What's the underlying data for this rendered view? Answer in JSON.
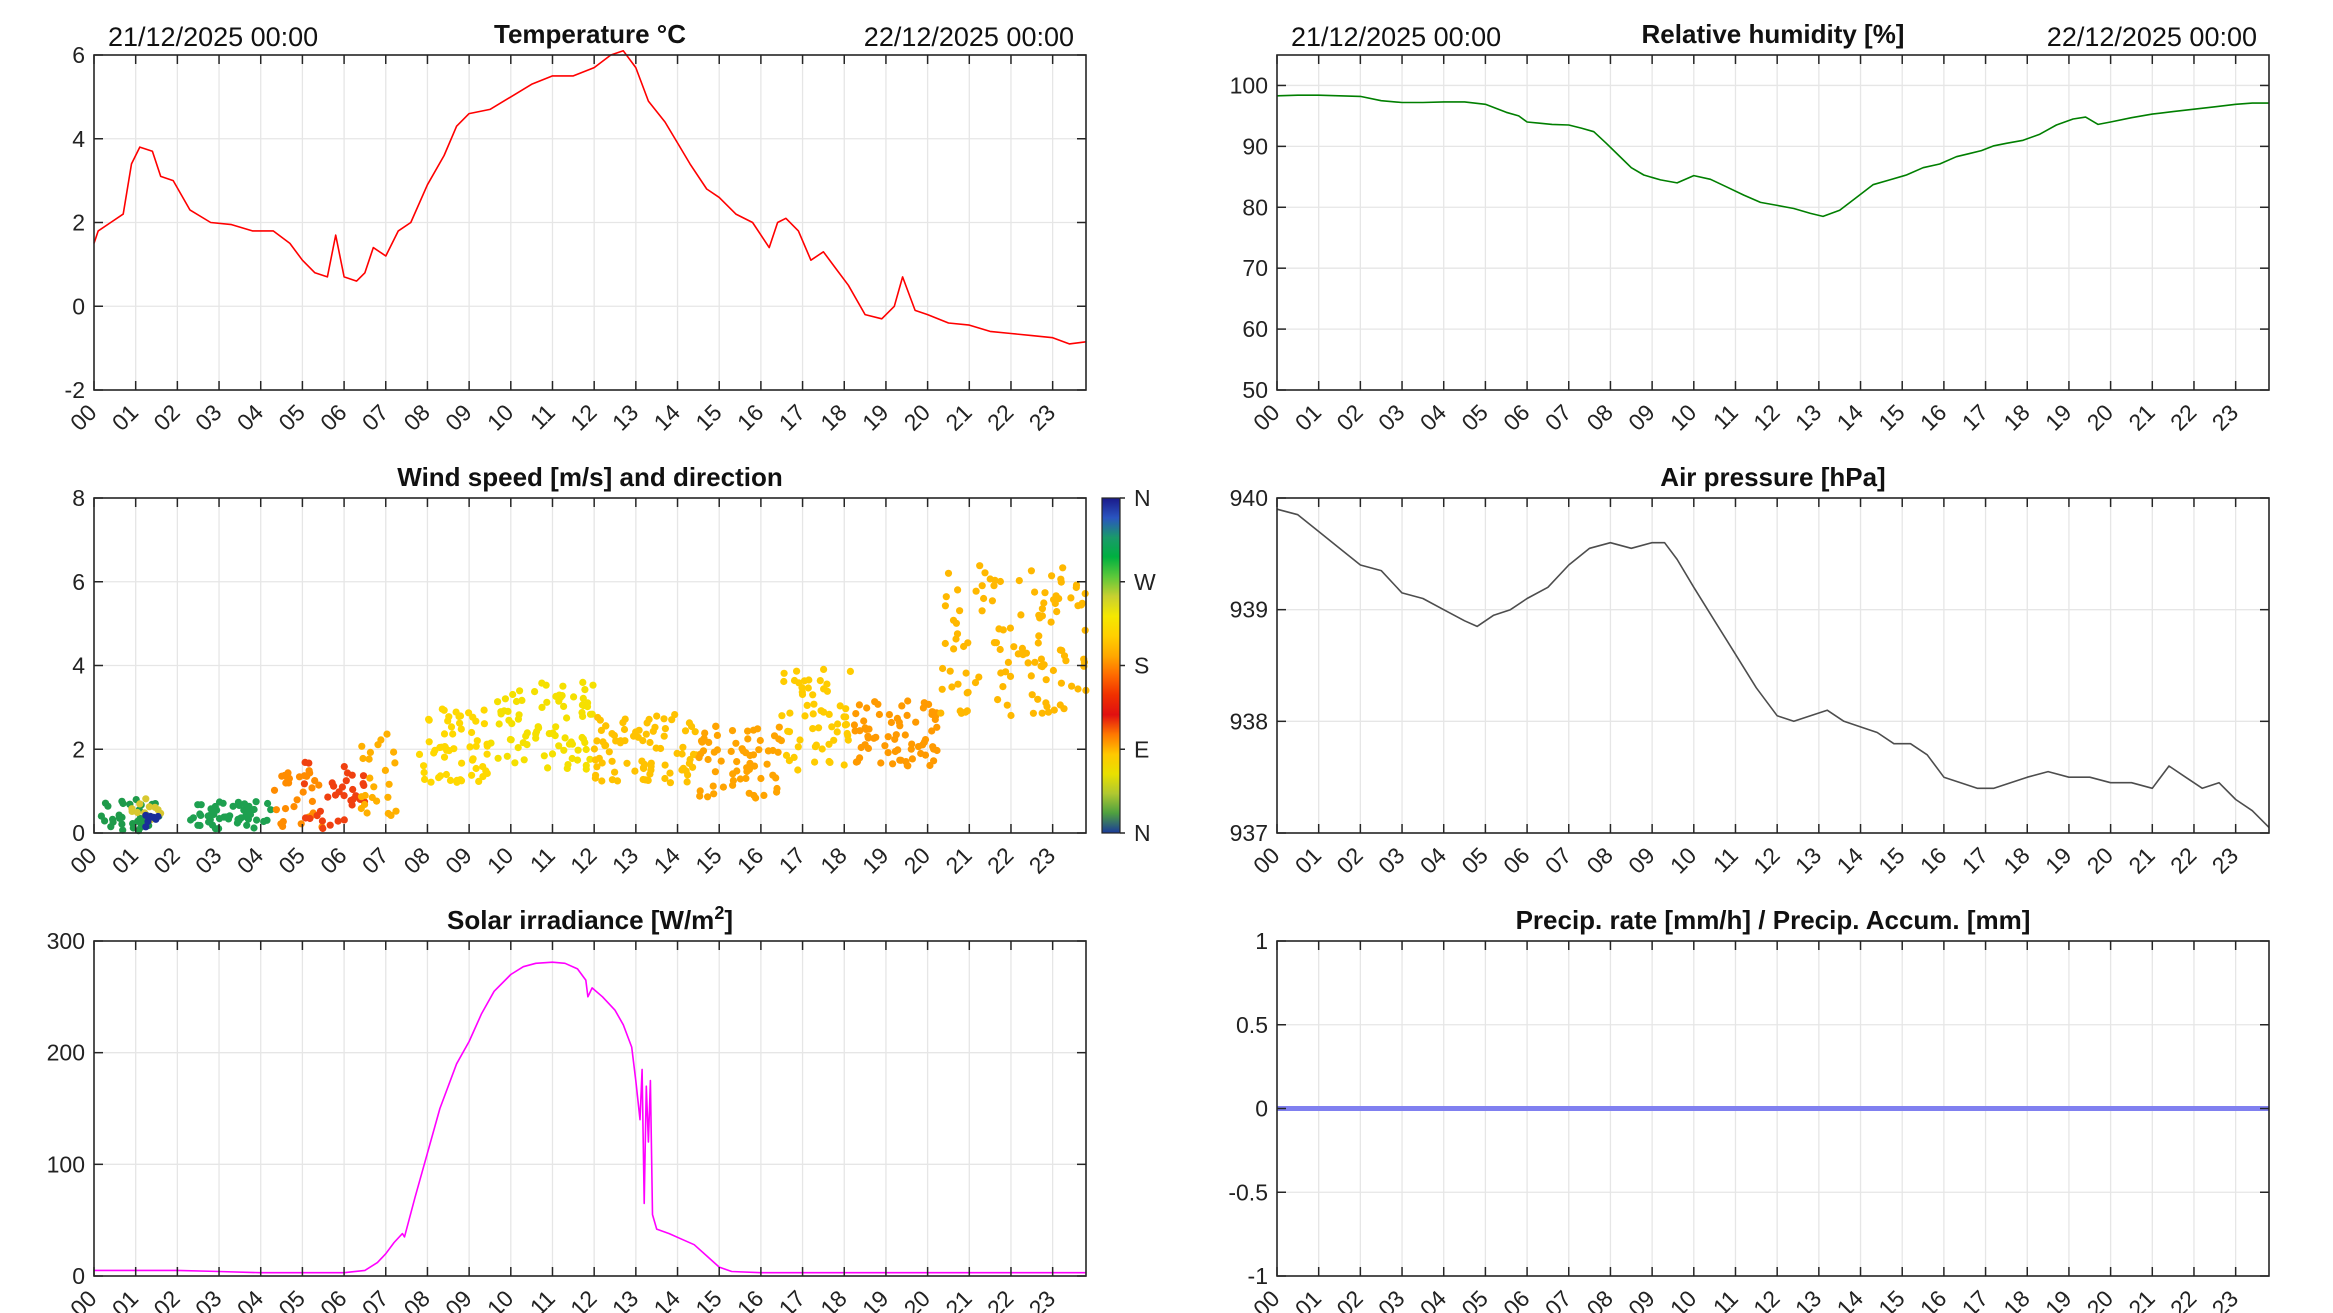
{
  "page": {
    "background": "#ffffff",
    "hour_labels": [
      "00",
      "01",
      "02",
      "03",
      "04",
      "05",
      "06",
      "07",
      "08",
      "09",
      "10",
      "11",
      "12",
      "13",
      "14",
      "15",
      "16",
      "17",
      "18",
      "19",
      "20",
      "21",
      "22",
      "23"
    ]
  },
  "chart_data": [
    {
      "id": "temperature",
      "type": "line",
      "title": "Temperature °C",
      "date_start": "21/12/2025 00:00",
      "date_end": "22/12/2025 00:00",
      "x_unit": "hour",
      "xlim": [
        0,
        23.8
      ],
      "ylim": [
        -2,
        6
      ],
      "yticks": [
        "6",
        "4",
        "2",
        "0",
        "-2"
      ],
      "color": "#ff0000",
      "x": [
        0,
        0.1,
        0.4,
        0.7,
        0.9,
        1.1,
        1.4,
        1.6,
        1.9,
        2.3,
        2.8,
        3.3,
        3.8,
        4.3,
        4.7,
        5.0,
        5.3,
        5.6,
        5.8,
        6.0,
        6.3,
        6.5,
        6.7,
        7.0,
        7.3,
        7.6,
        8.0,
        8.4,
        8.7,
        9.0,
        9.5,
        10.0,
        10.5,
        11.0,
        11.5,
        12.0,
        12.4,
        12.7,
        13.0,
        13.3,
        13.7,
        14.0,
        14.3,
        14.7,
        15.0,
        15.4,
        15.8,
        16.2,
        16.4,
        16.6,
        16.9,
        17.2,
        17.5,
        17.8,
        18.1,
        18.5,
        18.9,
        19.2,
        19.4,
        19.7,
        20.0,
        20.5,
        21.0,
        21.5,
        22.0,
        22.5,
        23.0,
        23.4,
        23.8
      ],
      "y": [
        1.5,
        1.8,
        2.0,
        2.2,
        3.4,
        3.8,
        3.7,
        3.1,
        3.0,
        2.3,
        2.0,
        1.95,
        1.8,
        1.8,
        1.5,
        1.1,
        0.8,
        0.7,
        1.7,
        0.7,
        0.6,
        0.8,
        1.4,
        1.2,
        1.8,
        2.0,
        2.9,
        3.6,
        4.3,
        4.6,
        4.7,
        5.0,
        5.3,
        5.5,
        5.5,
        5.7,
        6.0,
        6.1,
        5.7,
        4.9,
        4.4,
        3.9,
        3.4,
        2.8,
        2.6,
        2.2,
        2.0,
        1.4,
        2.0,
        2.1,
        1.8,
        1.1,
        1.3,
        0.9,
        0.5,
        -0.2,
        -0.3,
        0.0,
        0.7,
        -0.1,
        -0.2,
        -0.4,
        -0.45,
        -0.6,
        -0.65,
        -0.7,
        -0.75,
        -0.9,
        -0.85
      ]
    },
    {
      "id": "humidity",
      "type": "line",
      "title": "Relative humidity [%]",
      "date_start": "21/12/2025 00:00",
      "date_end": "22/12/2025 00:00",
      "x_unit": "hour",
      "xlim": [
        0,
        23.8
      ],
      "ylim": [
        50,
        105
      ],
      "yticks": [
        "100",
        "90",
        "80",
        "70",
        "60",
        "50"
      ],
      "color": "#007f00",
      "x": [
        0,
        0.5,
        1.0,
        1.5,
        2.0,
        2.5,
        3.0,
        3.5,
        4.0,
        4.5,
        5.0,
        5.5,
        5.8,
        6.0,
        6.3,
        6.6,
        7.0,
        7.3,
        7.6,
        7.9,
        8.2,
        8.5,
        8.8,
        9.2,
        9.6,
        10.0,
        10.4,
        10.8,
        11.2,
        11.6,
        12.0,
        12.4,
        12.8,
        13.1,
        13.5,
        13.9,
        14.3,
        14.7,
        15.1,
        15.5,
        15.9,
        16.3,
        16.6,
        16.9,
        17.2,
        17.5,
        17.9,
        18.3,
        18.7,
        19.1,
        19.4,
        19.7,
        20.0,
        20.5,
        21.0,
        21.5,
        22.0,
        22.5,
        23.0,
        23.4,
        23.8
      ],
      "y": [
        98.3,
        98.4,
        98.4,
        98.3,
        98.2,
        97.5,
        97.2,
        97.2,
        97.3,
        97.3,
        96.9,
        95.6,
        95.0,
        94.0,
        93.8,
        93.6,
        93.5,
        93.0,
        92.4,
        90.5,
        88.5,
        86.5,
        85.3,
        84.5,
        84.0,
        85.2,
        84.6,
        83.3,
        82.0,
        80.8,
        80.3,
        79.8,
        79.0,
        78.5,
        79.5,
        81.6,
        83.7,
        84.5,
        85.3,
        86.5,
        87.1,
        88.3,
        88.8,
        89.3,
        90.1,
        90.5,
        91.0,
        92.0,
        93.5,
        94.5,
        94.8,
        93.6,
        94.0,
        94.7,
        95.3,
        95.7,
        96.1,
        96.5,
        96.9,
        97.1,
        97.1
      ]
    },
    {
      "id": "wind",
      "type": "scatter",
      "title": "Wind speed [m/s] and direction",
      "x_unit": "hour",
      "xlim": [
        0,
        23.8
      ],
      "ylim": [
        0,
        8
      ],
      "yticks": [
        "8",
        "6",
        "4",
        "2",
        "0"
      ],
      "colorbar_labels": [
        "N",
        "W",
        "S",
        "E",
        "N"
      ],
      "colormap": [
        "#1a1a8a",
        "#2a55c0",
        "#1a9a6a",
        "#00b040",
        "#5cc83a",
        "#c8d030",
        "#f5e800",
        "#ffd000",
        "#ffa800",
        "#ff6a00",
        "#f03000",
        "#e01010",
        "#ff7800",
        "#ffc800",
        "#e8e000",
        "#b0c830",
        "#4ea040",
        "#1a3a9a"
      ],
      "segments": [
        {
          "x0": 0.0,
          "x1": 1.6,
          "y_min": 0.05,
          "y_max": 0.8,
          "n": 36,
          "color": "#1e9a4a"
        },
        {
          "x0": 0.9,
          "x1": 1.6,
          "y_min": 0.1,
          "y_max": 0.85,
          "n": 12,
          "color": "#d8c830"
        },
        {
          "x0": 1.2,
          "x1": 1.7,
          "y_min": 0.05,
          "y_max": 0.45,
          "n": 8,
          "color": "#1a2e9a"
        },
        {
          "x0": 2.3,
          "x1": 4.3,
          "y_min": 0.1,
          "y_max": 0.75,
          "n": 52,
          "color": "#1ea050"
        },
        {
          "x0": 4.3,
          "x1": 5.5,
          "y_min": 0.1,
          "y_max": 1.5,
          "n": 30,
          "color": "#ff8c00"
        },
        {
          "x0": 5.0,
          "x1": 6.5,
          "y_min": 0.1,
          "y_max": 1.7,
          "n": 34,
          "color": "#f04010"
        },
        {
          "x0": 6.4,
          "x1": 7.4,
          "y_min": 0.3,
          "y_max": 2.4,
          "n": 24,
          "color": "#ffb000"
        },
        {
          "x0": 7.8,
          "x1": 9.5,
          "y_min": 1.2,
          "y_max": 3.0,
          "n": 60,
          "color": "#ffd800"
        },
        {
          "x0": 9.5,
          "x1": 12.0,
          "y_min": 1.5,
          "y_max": 3.6,
          "n": 84,
          "color": "#f5e000"
        },
        {
          "x0": 12.0,
          "x1": 14.5,
          "y_min": 1.2,
          "y_max": 2.9,
          "n": 84,
          "color": "#ffc200"
        },
        {
          "x0": 14.5,
          "x1": 16.5,
          "y_min": 0.8,
          "y_max": 2.6,
          "n": 66,
          "color": "#ffa400"
        },
        {
          "x0": 16.5,
          "x1": 18.2,
          "y_min": 1.5,
          "y_max": 4.0,
          "n": 58,
          "color": "#ffcc00"
        },
        {
          "x0": 18.2,
          "x1": 20.3,
          "y_min": 1.6,
          "y_max": 3.2,
          "n": 72,
          "color": "#ff9a00"
        },
        {
          "x0": 20.3,
          "x1": 23.8,
          "y_min": 2.8,
          "y_max": 6.4,
          "n": 118,
          "color": "#ffb800"
        }
      ]
    },
    {
      "id": "pressure",
      "type": "line",
      "title": "Air pressure [hPa]",
      "x_unit": "hour",
      "xlim": [
        0,
        23.8
      ],
      "ylim": [
        937,
        940
      ],
      "yticks": [
        "940",
        "939",
        "938",
        "937"
      ],
      "color": "#4d4d4d",
      "x": [
        0,
        0.5,
        1.0,
        1.5,
        2.0,
        2.5,
        3.0,
        3.5,
        4.0,
        4.5,
        4.8,
        5.2,
        5.6,
        6.0,
        6.5,
        7.0,
        7.5,
        8.0,
        8.5,
        9.0,
        9.3,
        9.6,
        10.0,
        10.5,
        11.0,
        11.5,
        12.0,
        12.4,
        12.8,
        13.2,
        13.6,
        14.0,
        14.4,
        14.8,
        15.2,
        15.6,
        16.0,
        16.4,
        16.8,
        17.2,
        17.6,
        18.0,
        18.5,
        19.0,
        19.5,
        20.0,
        20.5,
        21.0,
        21.4,
        21.8,
        22.2,
        22.6,
        23.0,
        23.4,
        23.8
      ],
      "y": [
        939.9,
        939.85,
        939.7,
        939.55,
        939.4,
        939.35,
        939.15,
        939.1,
        939.0,
        938.9,
        938.85,
        938.95,
        939.0,
        939.1,
        939.2,
        939.4,
        939.55,
        939.6,
        939.55,
        939.6,
        939.6,
        939.45,
        939.2,
        938.9,
        938.6,
        938.3,
        938.05,
        938.0,
        938.05,
        938.1,
        938.0,
        937.95,
        937.9,
        937.8,
        937.8,
        937.7,
        937.5,
        937.45,
        937.4,
        937.4,
        937.45,
        937.5,
        937.55,
        937.5,
        937.5,
        937.45,
        937.45,
        937.4,
        937.6,
        937.5,
        937.4,
        937.45,
        937.3,
        937.2,
        937.05
      ]
    },
    {
      "id": "solar",
      "type": "line",
      "title": "Solar irradiance [W/m",
      "title_sup": "2",
      "title_end": "]",
      "x_unit": "hour",
      "xlim": [
        0,
        23.8
      ],
      "ylim": [
        0,
        300
      ],
      "yticks": [
        "300",
        "200",
        "100",
        "0"
      ],
      "color": "#ff00ff",
      "x": [
        0,
        1.0,
        2.0,
        3.0,
        4.0,
        5.0,
        6.0,
        6.5,
        6.8,
        7.0,
        7.2,
        7.4,
        7.45,
        7.7,
        8.0,
        8.3,
        8.7,
        9.0,
        9.3,
        9.6,
        10.0,
        10.3,
        10.6,
        11.0,
        11.3,
        11.6,
        11.8,
        11.85,
        11.95,
        12.2,
        12.5,
        12.7,
        12.9,
        13.0,
        13.1,
        13.15,
        13.2,
        13.25,
        13.3,
        13.35,
        13.4,
        13.5,
        13.8,
        14.1,
        14.4,
        14.7,
        15.0,
        15.3,
        16.0,
        18.0,
        20.0,
        22.0,
        23.8
      ],
      "y": [
        5,
        5,
        5,
        4,
        3,
        3,
        3,
        5,
        12,
        20,
        30,
        38,
        35,
        70,
        110,
        150,
        190,
        210,
        235,
        255,
        270,
        277,
        280,
        281,
        280,
        275,
        265,
        250,
        258,
        250,
        238,
        225,
        205,
        175,
        140,
        185,
        65,
        170,
        120,
        175,
        55,
        42,
        38,
        33,
        28,
        18,
        8,
        4,
        3,
        3,
        3,
        3,
        3
      ]
    },
    {
      "id": "precip",
      "type": "line",
      "title": "Precip. rate [mm/h] / Precip. Accum. [mm]",
      "x_unit": "hour",
      "xlim": [
        0,
        23.8
      ],
      "ylim": [
        -1,
        1
      ],
      "yticks": [
        "1",
        "0.5",
        "0",
        "-0.5",
        "-1"
      ],
      "color": "#8080f0",
      "x": [
        0,
        23.8
      ],
      "y": [
        0,
        0
      ]
    }
  ]
}
